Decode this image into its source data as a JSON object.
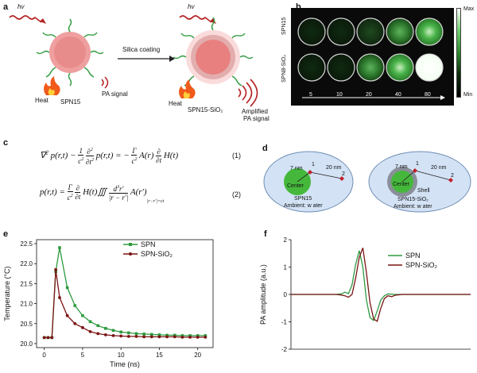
{
  "panels": {
    "a": "a",
    "b": "b",
    "c": "c",
    "d": "d",
    "e": "e",
    "f": "f"
  },
  "panel_a": {
    "hv1": "hv",
    "hv2": "hv",
    "arrow_label": "Silica coating",
    "left_name": "SPN15",
    "right_name": "SPN15-SiO₂",
    "heat1": "Heat",
    "heat2": "Heat",
    "pa_signal": "PA signal",
    "amplified1": "Amplified",
    "amplified2": "PA signal"
  },
  "panel_b": {
    "row1": "SPN15",
    "row2": "SPN8-SiO₂",
    "concentrations": [
      "5",
      "10",
      "20",
      "40",
      "80"
    ],
    "cbar_max": "Max",
    "cbar_min": "Min",
    "colors": {
      "well_bg": "#0a0a0a",
      "green": "#2ea82e"
    }
  },
  "panel_c": {
    "eq1_num": "(1)",
    "eq2_num": "(2)"
  },
  "panel_d": {
    "left": {
      "d1": "7 nm",
      "d2": "20 nm",
      "p1": "1",
      "p2": "2",
      "center": "Center",
      "name": "SPN15",
      "ambient": "Ambient: w ater"
    },
    "right": {
      "d1": "7 nm",
      "d2": "20 nm",
      "p1": "1",
      "p2": "2",
      "center": "Center",
      "shell": "Shell",
      "name": "SPN15-SiO₂",
      "ambient": "Ambient: w ater"
    }
  },
  "chart_data": [
    {
      "type": "line",
      "xlabel": "Time (ns)",
      "ylabel": "Temperature (°C)",
      "xlim": [
        -1,
        22
      ],
      "ylim": [
        19.9,
        22.6
      ],
      "xticks": [
        0,
        5,
        10,
        15,
        20
      ],
      "yticks": [
        20.0,
        20.5,
        21.0,
        21.5,
        22.0,
        22.5
      ],
      "legend_position": "top-right",
      "series": [
        {
          "name": "SPN",
          "color": "#2e9a3e",
          "x": [
            0,
            0.5,
            1,
            1.5,
            2,
            3,
            4,
            5,
            6,
            7,
            8,
            9,
            10,
            11,
            12,
            13,
            14,
            15,
            16,
            17,
            18,
            19,
            20,
            21
          ],
          "y": [
            20.15,
            20.15,
            20.15,
            21.8,
            22.4,
            21.4,
            20.95,
            20.7,
            20.55,
            20.45,
            20.38,
            20.33,
            20.29,
            20.27,
            20.25,
            20.24,
            20.23,
            20.22,
            20.21,
            20.21,
            20.2,
            20.2,
            20.2,
            20.2
          ]
        },
        {
          "name": "SPN-SiO₂",
          "color": "#7a1414",
          "x": [
            0,
            0.5,
            1,
            1.5,
            2,
            3,
            4,
            5,
            6,
            7,
            8,
            9,
            10,
            11,
            12,
            13,
            14,
            15,
            16,
            17,
            18,
            19,
            20,
            21
          ],
          "y": [
            20.15,
            20.15,
            20.15,
            21.85,
            21.15,
            20.7,
            20.5,
            20.4,
            20.3,
            20.25,
            20.22,
            20.2,
            20.19,
            20.18,
            20.18,
            20.17,
            20.17,
            20.17,
            20.17,
            20.17,
            20.16,
            20.16,
            20.16,
            20.16
          ]
        }
      ]
    },
    {
      "type": "line",
      "xlabel": "",
      "ylabel": "PA amplitude (a.u.)",
      "ylim": [
        -2,
        2
      ],
      "yticks": [
        -2,
        -1,
        0,
        1,
        2
      ],
      "legend_position": "top-right",
      "series": [
        {
          "name": "SPN",
          "color": "#2e9a3e",
          "x": [
            0,
            10,
            20,
            25,
            28,
            30,
            32,
            34,
            36,
            38,
            40,
            42,
            44,
            46,
            48,
            50,
            52,
            54,
            56,
            58,
            62,
            66,
            70,
            80,
            100
          ],
          "y": [
            0,
            0,
            0,
            0,
            0.02,
            0.08,
            0.03,
            0.35,
            1.1,
            1.6,
            1.0,
            -0.2,
            -0.85,
            -0.95,
            -0.6,
            -0.2,
            -0.05,
            0.02,
            0.01,
            0,
            0,
            0,
            0,
            0,
            0
          ]
        },
        {
          "name": "SPN-SiO₂",
          "color": "#7a1414",
          "x": [
            0,
            10,
            20,
            25,
            28,
            30,
            32,
            34,
            36,
            38,
            40,
            42,
            44,
            46,
            48,
            50,
            52,
            54,
            56,
            58,
            62,
            66,
            70,
            80,
            100
          ],
          "y": [
            0,
            0,
            0,
            0,
            -0.02,
            -0.05,
            -0.1,
            0.0,
            0.6,
            1.35,
            1.7,
            0.8,
            -0.3,
            -0.9,
            -0.98,
            -0.5,
            -0.15,
            -0.05,
            -0.08,
            -0.03,
            0,
            0,
            0,
            0,
            0
          ]
        }
      ]
    }
  ]
}
